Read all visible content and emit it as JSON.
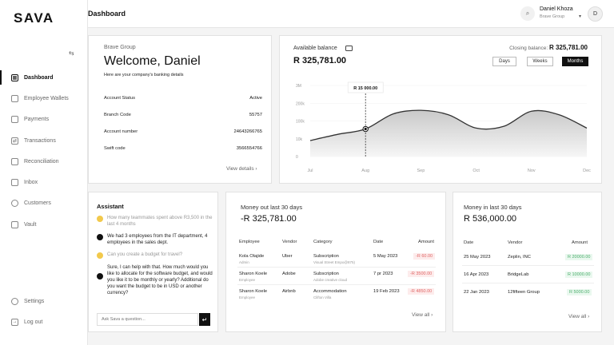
{
  "app": {
    "logo": "SAVA",
    "page_title": "Dashboard"
  },
  "sidebar": {
    "items": [
      {
        "label": "Dashboard",
        "icon": "grid-icon",
        "active": true
      },
      {
        "label": "Employee Wallets",
        "icon": "wallet-icon"
      },
      {
        "label": "Payments",
        "icon": "card-icon"
      },
      {
        "label": "Transactions",
        "icon": "transactions-icon"
      },
      {
        "label": "Reconciliation",
        "icon": "reconcile-icon"
      },
      {
        "label": "Inbox",
        "icon": "inbox-icon"
      },
      {
        "label": "Customers",
        "icon": "customers-icon"
      },
      {
        "label": "Vault",
        "icon": "vault-icon"
      }
    ],
    "bottom": [
      {
        "label": "Settings",
        "icon": "gear-icon"
      },
      {
        "label": "Log out",
        "icon": "logout-icon"
      }
    ]
  },
  "user": {
    "name": "Daniel Khoza",
    "org": "Brave Group",
    "initial": "D"
  },
  "welcome": {
    "org": "Brave Group",
    "greeting": "Welcome, Daniel",
    "subtitle": "Here are your company's banking details",
    "details": [
      {
        "label": "Account Status",
        "value": "Active"
      },
      {
        "label": "Branch Code",
        "value": "55757"
      },
      {
        "label": "Account number",
        "value": "24643266765"
      },
      {
        "label": "Swift code",
        "value": "3566554766"
      }
    ],
    "view_link": "View details"
  },
  "balance": {
    "label": "Available balance",
    "amount": "R 325,781.00",
    "closing_label": "Closing balance:",
    "closing_amount": "R 325,781.00",
    "ranges": [
      "Days",
      "Weeks",
      "Months"
    ],
    "active_range": "Months",
    "tooltip": "R 15 000.00"
  },
  "chart_data": {
    "type": "area",
    "x": [
      "Jul",
      "Aug",
      "Sep",
      "Oct",
      "Nov",
      "Dec"
    ],
    "y_ticks": [
      "0",
      "10k",
      "100k",
      "200k",
      "3M"
    ],
    "series": [
      {
        "values": [
          [
            0,
            0.9
          ],
          [
            0.5,
            1.25
          ],
          [
            1,
            1.55
          ],
          [
            1.5,
            2.4
          ],
          [
            2,
            2.6
          ],
          [
            2.5,
            2.35
          ],
          [
            3,
            1.6
          ],
          [
            3.5,
            1.7
          ],
          [
            4,
            2.55
          ],
          [
            4.5,
            2.35
          ],
          [
            5,
            1.6
          ]
        ]
      }
    ],
    "highlight": {
      "x": "Aug",
      "label": "R 15 000.00"
    },
    "grid": true
  },
  "assistant": {
    "title": "Assistant",
    "messages": [
      {
        "role": "user",
        "text": "How many teammates spent above R3,500 in the  last 4 months"
      },
      {
        "role": "bot",
        "text": "We had 3 employees from the IT department, 4 employees in the sales dept."
      },
      {
        "role": "user",
        "text": "Can you create a budget for travel?"
      },
      {
        "role": "bot",
        "text": "Sure, I can help with that. How much would you like to allocate for the software budget, and would you like it to be monthly or yearly? Additional do you want the budget to be in USD or another currency?"
      }
    ],
    "input_placeholder": "Ask Sava a question...",
    "send_icon": "enter-icon"
  },
  "money_out": {
    "title": "Money out last 30 days",
    "amount": "-R 325,781.00",
    "columns": [
      "Employee",
      "Vendor",
      "Category",
      "Date",
      "Amount"
    ],
    "rows": [
      {
        "employee": "Kola Olajide",
        "role": "Admin",
        "vendor": "Uber",
        "category": "Subscription",
        "cat_sub": "Visual Street Empo@875)",
        "date": "5 May 2023",
        "amount": "-R 60.00"
      },
      {
        "employee": "Sharon Koele",
        "role": "Employee",
        "vendor": "Adobe",
        "category": "Subscription",
        "cat_sub": "Adobe creative cloud",
        "date": "7 pr 2023",
        "amount": "-R 3500.00"
      },
      {
        "employee": "Sharon Koele",
        "role": "Employee",
        "vendor": "Airbnb",
        "category": "Accommodation",
        "cat_sub": "Clifton Villa",
        "date": "19 Feb 2023",
        "amount": "-R 4850.00"
      }
    ],
    "view_link": "View all"
  },
  "money_in": {
    "title": "Money in last 30 days",
    "amount": "R 536,000.00",
    "columns": [
      "Date",
      "Vendor",
      "Amount"
    ],
    "rows": [
      {
        "date": "25 May 2023",
        "vendor": "Zeplin, INC",
        "amount": "R 20000.00"
      },
      {
        "date": "16 Apr 2023",
        "vendor": "BridgeLab",
        "amount": "R 10000.00"
      },
      {
        "date": "22 Jan 2023",
        "vendor": "12fifteen Group",
        "amount": "R 5000.00"
      }
    ],
    "view_link": "View all"
  },
  "colors": {
    "accent": "#111111",
    "negative": "#e06666",
    "positive": "#4cae6c",
    "assistant_user": "#f2c94c"
  }
}
